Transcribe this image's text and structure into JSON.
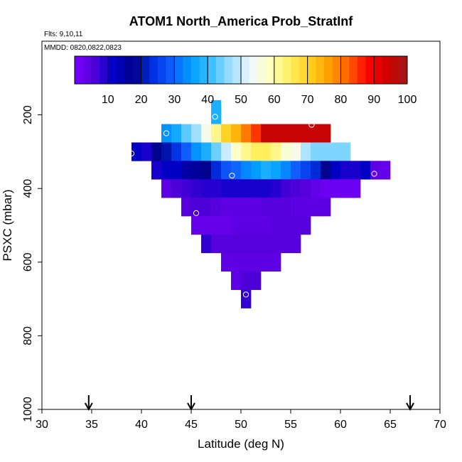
{
  "chart_data": {
    "type": "heatmap",
    "title": "ATOM1 North_America Prob_StratInf",
    "notes": [
      "Flts: 9,10,11",
      "MMDD: 0820,0822,0823"
    ],
    "xlabel": "Latitude (deg N)",
    "ylabel": "PSXC (mbar)",
    "xlim": [
      30,
      70
    ],
    "ylim": [
      1000,
      0
    ],
    "x_ticks": [
      "30",
      "35",
      "40",
      "45",
      "50",
      "55",
      "60",
      "65",
      "70"
    ],
    "y_ticks": [
      "200",
      "400",
      "600",
      "800",
      "1000"
    ],
    "colorbar": {
      "ticks": [
        "10",
        "20",
        "30",
        "40",
        "50",
        "60",
        "70",
        "80",
        "90",
        "100"
      ],
      "range": [
        0,
        100
      ],
      "stops": [
        "#7a00ff",
        "#5000d8",
        "#0000c8",
        "#000088",
        "#0030e0",
        "#1060ff",
        "#00a0ff",
        "#40c0ff",
        "#a0e0ff",
        "#f0f8ff",
        "#ffffc0",
        "#fff060",
        "#ffd020",
        "#ffa000",
        "#ff6000",
        "#ff0000",
        "#d00000",
        "#a01818"
      ]
    },
    "cell_width_deg": 1,
    "cell_height_mbar": 50,
    "rows": [
      {
        "p": 200,
        "start": 47.0,
        "values": [
          38
        ]
      },
      {
        "p": 250,
        "start": 42.0,
        "values": [
          34,
          37,
          43,
          47,
          55,
          62,
          70,
          74,
          80,
          85,
          95,
          95,
          95,
          95,
          95,
          95,
          95
        ]
      },
      {
        "p": 300,
        "start": 39.0,
        "values": [
          12,
          10,
          18,
          20,
          24,
          29,
          34,
          38,
          44,
          50,
          58,
          62,
          65,
          65,
          62,
          57,
          55,
          48,
          45,
          45,
          45,
          45
        ]
      },
      {
        "p": 350,
        "start": 41.0,
        "values": [
          10,
          12,
          12,
          15,
          16,
          18,
          23,
          28,
          30,
          33,
          35,
          38,
          36,
          33,
          29,
          26,
          23,
          18,
          12,
          10,
          10,
          12,
          4,
          3
        ]
      },
      {
        "p": 400,
        "start": 42.0,
        "values": [
          4,
          6,
          7,
          8,
          9,
          9,
          10,
          10,
          10,
          10,
          10,
          9,
          7,
          6,
          5,
          3,
          2,
          2,
          2,
          2
        ]
      },
      {
        "p": 450,
        "start": 44.0,
        "values": [
          5,
          6,
          6,
          5,
          4,
          4,
          4,
          4,
          5,
          5,
          5,
          4,
          4,
          4,
          4
        ]
      },
      {
        "p": 500,
        "start": 45.0,
        "values": [
          3,
          3,
          3,
          3,
          4,
          4,
          4,
          4,
          5,
          5,
          5,
          5
        ]
      },
      {
        "p": 550,
        "start": 46.0,
        "values": [
          8,
          5,
          5,
          5,
          5,
          5,
          5,
          5,
          5,
          5
        ]
      },
      {
        "p": 600,
        "start": 48.0,
        "values": [
          4,
          4,
          4,
          4,
          4,
          4
        ]
      },
      {
        "p": 650,
        "start": 49.0,
        "values": [
          4,
          6,
          6
        ]
      },
      {
        "p": 700,
        "start": 50.0,
        "values": [
          8
        ]
      }
    ],
    "points": [
      {
        "lat": 47.4,
        "p": 205
      },
      {
        "lat": 51.7,
        "p": 212
      },
      {
        "lat": 57.1,
        "p": 227
      },
      {
        "lat": 42.5,
        "p": 250
      },
      {
        "lat": 39.0,
        "p": 305
      },
      {
        "lat": 49.1,
        "p": 365
      },
      {
        "lat": 63.4,
        "p": 360
      },
      {
        "lat": 45.5,
        "p": 467
      },
      {
        "lat": 50.5,
        "p": 688
      }
    ],
    "arrows_lat": [
      34.7,
      45.0,
      67.0
    ],
    "grid": false
  }
}
